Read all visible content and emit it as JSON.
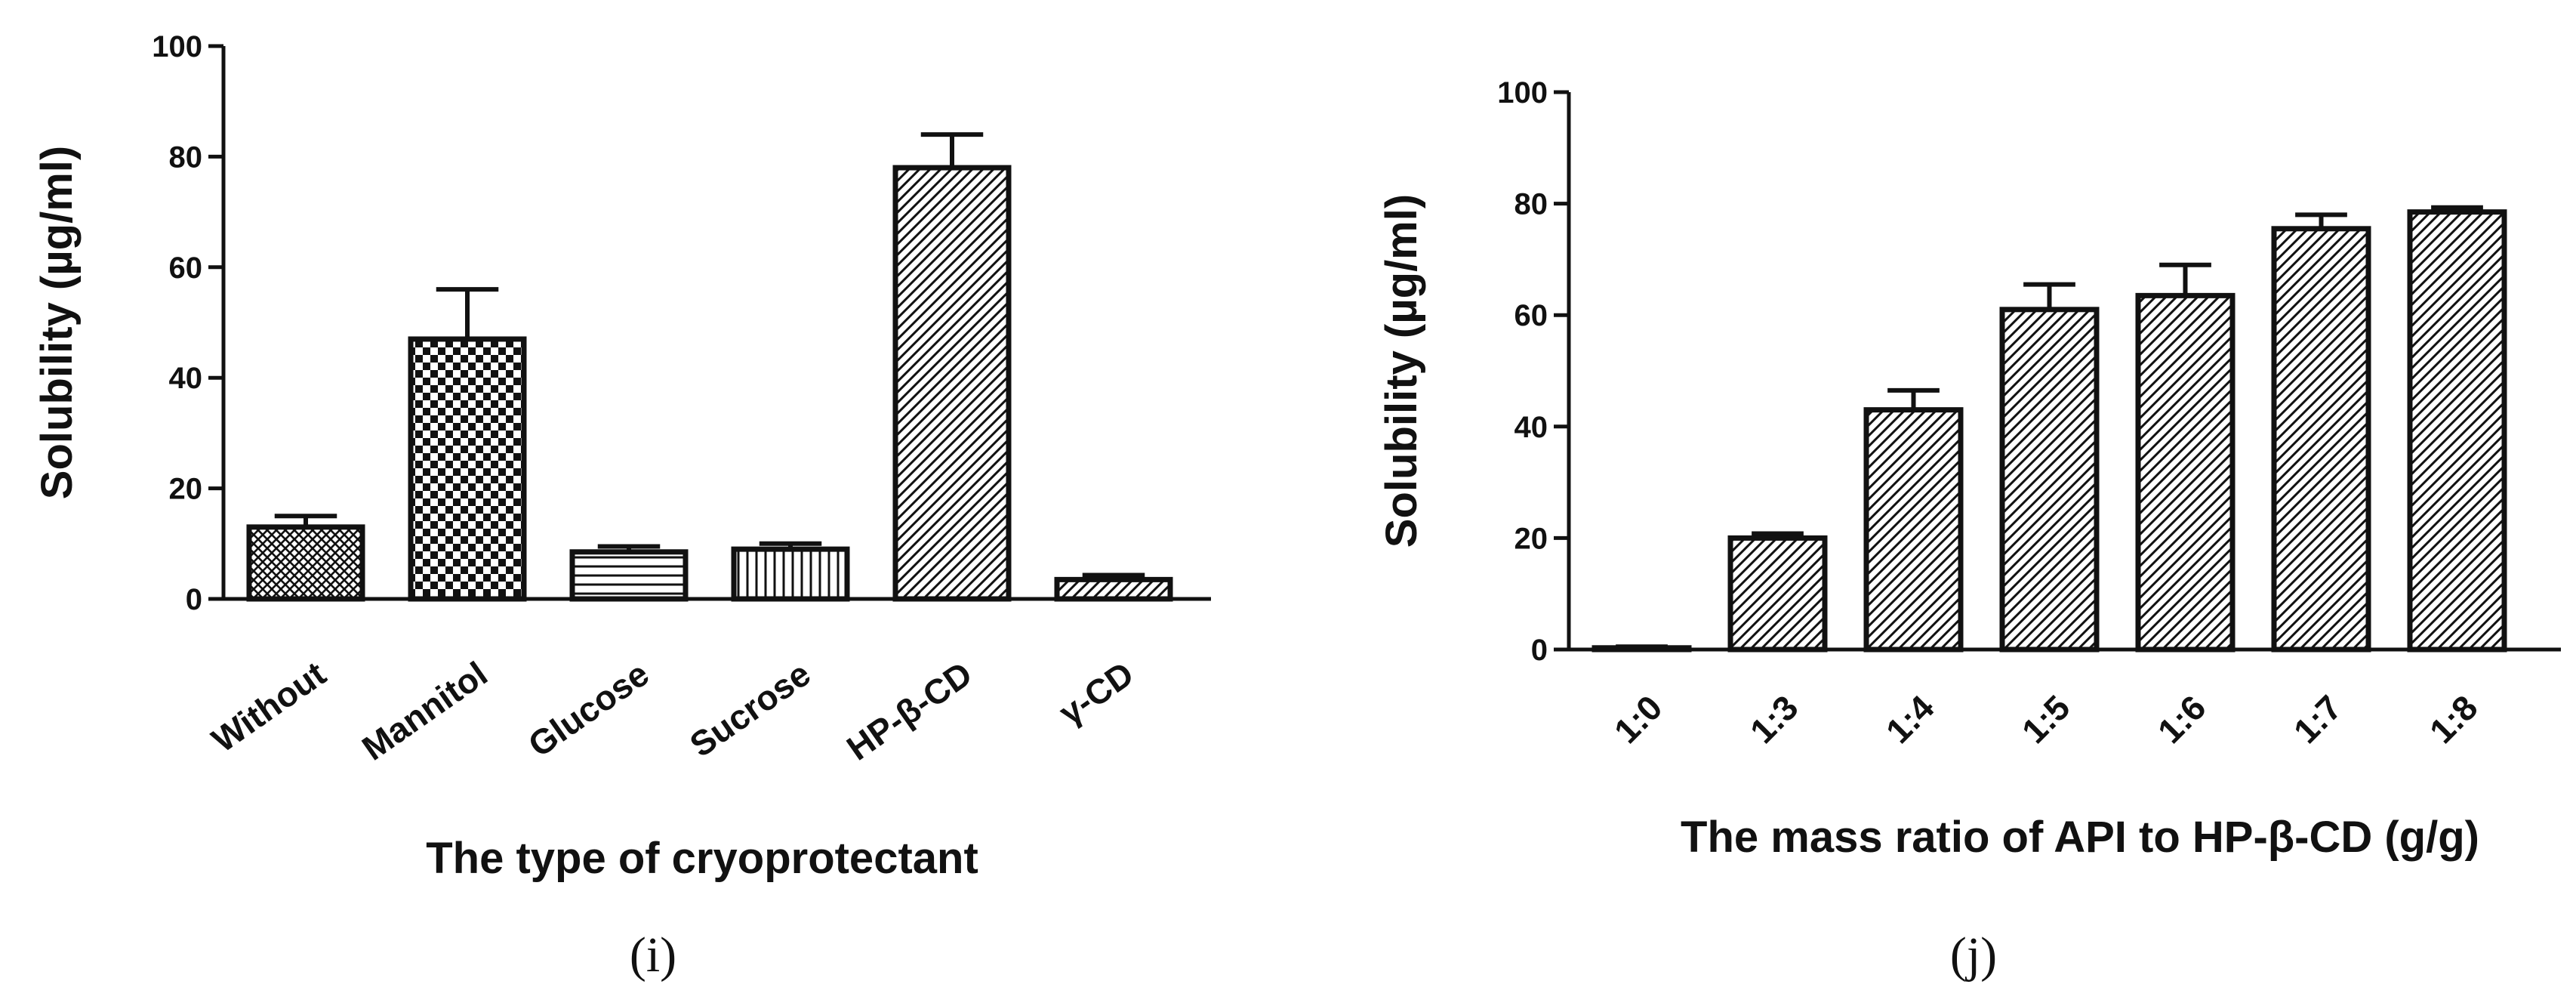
{
  "chart_data": [
    {
      "type": "bar",
      "panel_label": "(i)",
      "title": "",
      "xlabel": "The type of cryoprotectant",
      "ylabel": "Solubility (µg/ml)",
      "ylim": [
        0,
        100
      ],
      "yticks": [
        0,
        20,
        40,
        60,
        80,
        100
      ],
      "categories": [
        "Without",
        "Mannitol",
        "Glucose",
        "Sucrose",
        "HP-β-CD",
        "γ-CD"
      ],
      "values": [
        13,
        47,
        8.5,
        9,
        78,
        3.5
      ],
      "errors": [
        2,
        9,
        1,
        1,
        6,
        0.8
      ],
      "patterns": [
        "crosshatch",
        "checker",
        "horizontal",
        "vertical",
        "diagonal",
        "diagonal"
      ]
    },
    {
      "type": "bar",
      "panel_label": "(j)",
      "title": "",
      "xlabel": "The mass ratio of API to HP-β-CD (g/g)",
      "ylabel": "Solubility (µg/ml)",
      "ylim": [
        0,
        100
      ],
      "yticks": [
        0,
        20,
        40,
        60,
        80,
        100
      ],
      "categories": [
        "1:0",
        "1:3",
        "1:4",
        "1:5",
        "1:6",
        "1:7",
        "1:8"
      ],
      "values": [
        0.3,
        20,
        43,
        61,
        63.5,
        75.5,
        78.5
      ],
      "errors": [
        0.2,
        0.8,
        3.5,
        4.5,
        5.5,
        2.5,
        0.8
      ],
      "patterns": [
        "diagonal",
        "diagonal",
        "diagonal",
        "diagonal",
        "diagonal",
        "diagonal",
        "diagonal"
      ]
    }
  ]
}
